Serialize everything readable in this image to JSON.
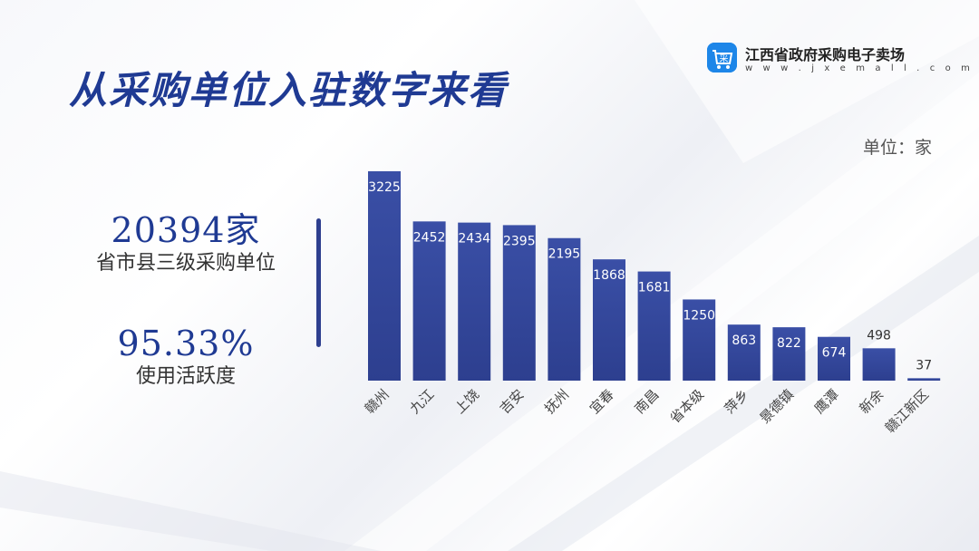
{
  "header": {
    "title": "从采购单位入驻数字来看"
  },
  "brand": {
    "name": "江西省政府采购电子卖场",
    "url": "w w w . j x e m a l l . c o m",
    "logo_text": "采"
  },
  "unit_label": "单位：家",
  "stats": [
    {
      "value": "20394家",
      "label": "省市县三级采购单位"
    },
    {
      "value": "95.33%",
      "label": "使用活跃度"
    }
  ],
  "colors": {
    "bar": "#2d3f8f",
    "bar_top": "#3a4fa6",
    "title": "#1f3a93",
    "logo": "#1d86e8"
  },
  "chart_data": {
    "type": "bar",
    "categories": [
      "赣州",
      "九江",
      "上饶",
      "吉安",
      "抚州",
      "宜春",
      "南昌",
      "省本级",
      "萍乡",
      "景德镇",
      "鹰潭",
      "新余",
      "赣江新区"
    ],
    "values": [
      3225,
      2452,
      2434,
      2395,
      2195,
      1868,
      1681,
      1250,
      863,
      822,
      674,
      498,
      37
    ],
    "data_labels": [
      "3225",
      "2452",
      "2434",
      "2395",
      "2195",
      "1868",
      "1681",
      "1250",
      "863",
      "822",
      "674",
      "498",
      "37"
    ],
    "ylim": [
      0,
      3350
    ],
    "grid": false,
    "legend": "none"
  }
}
